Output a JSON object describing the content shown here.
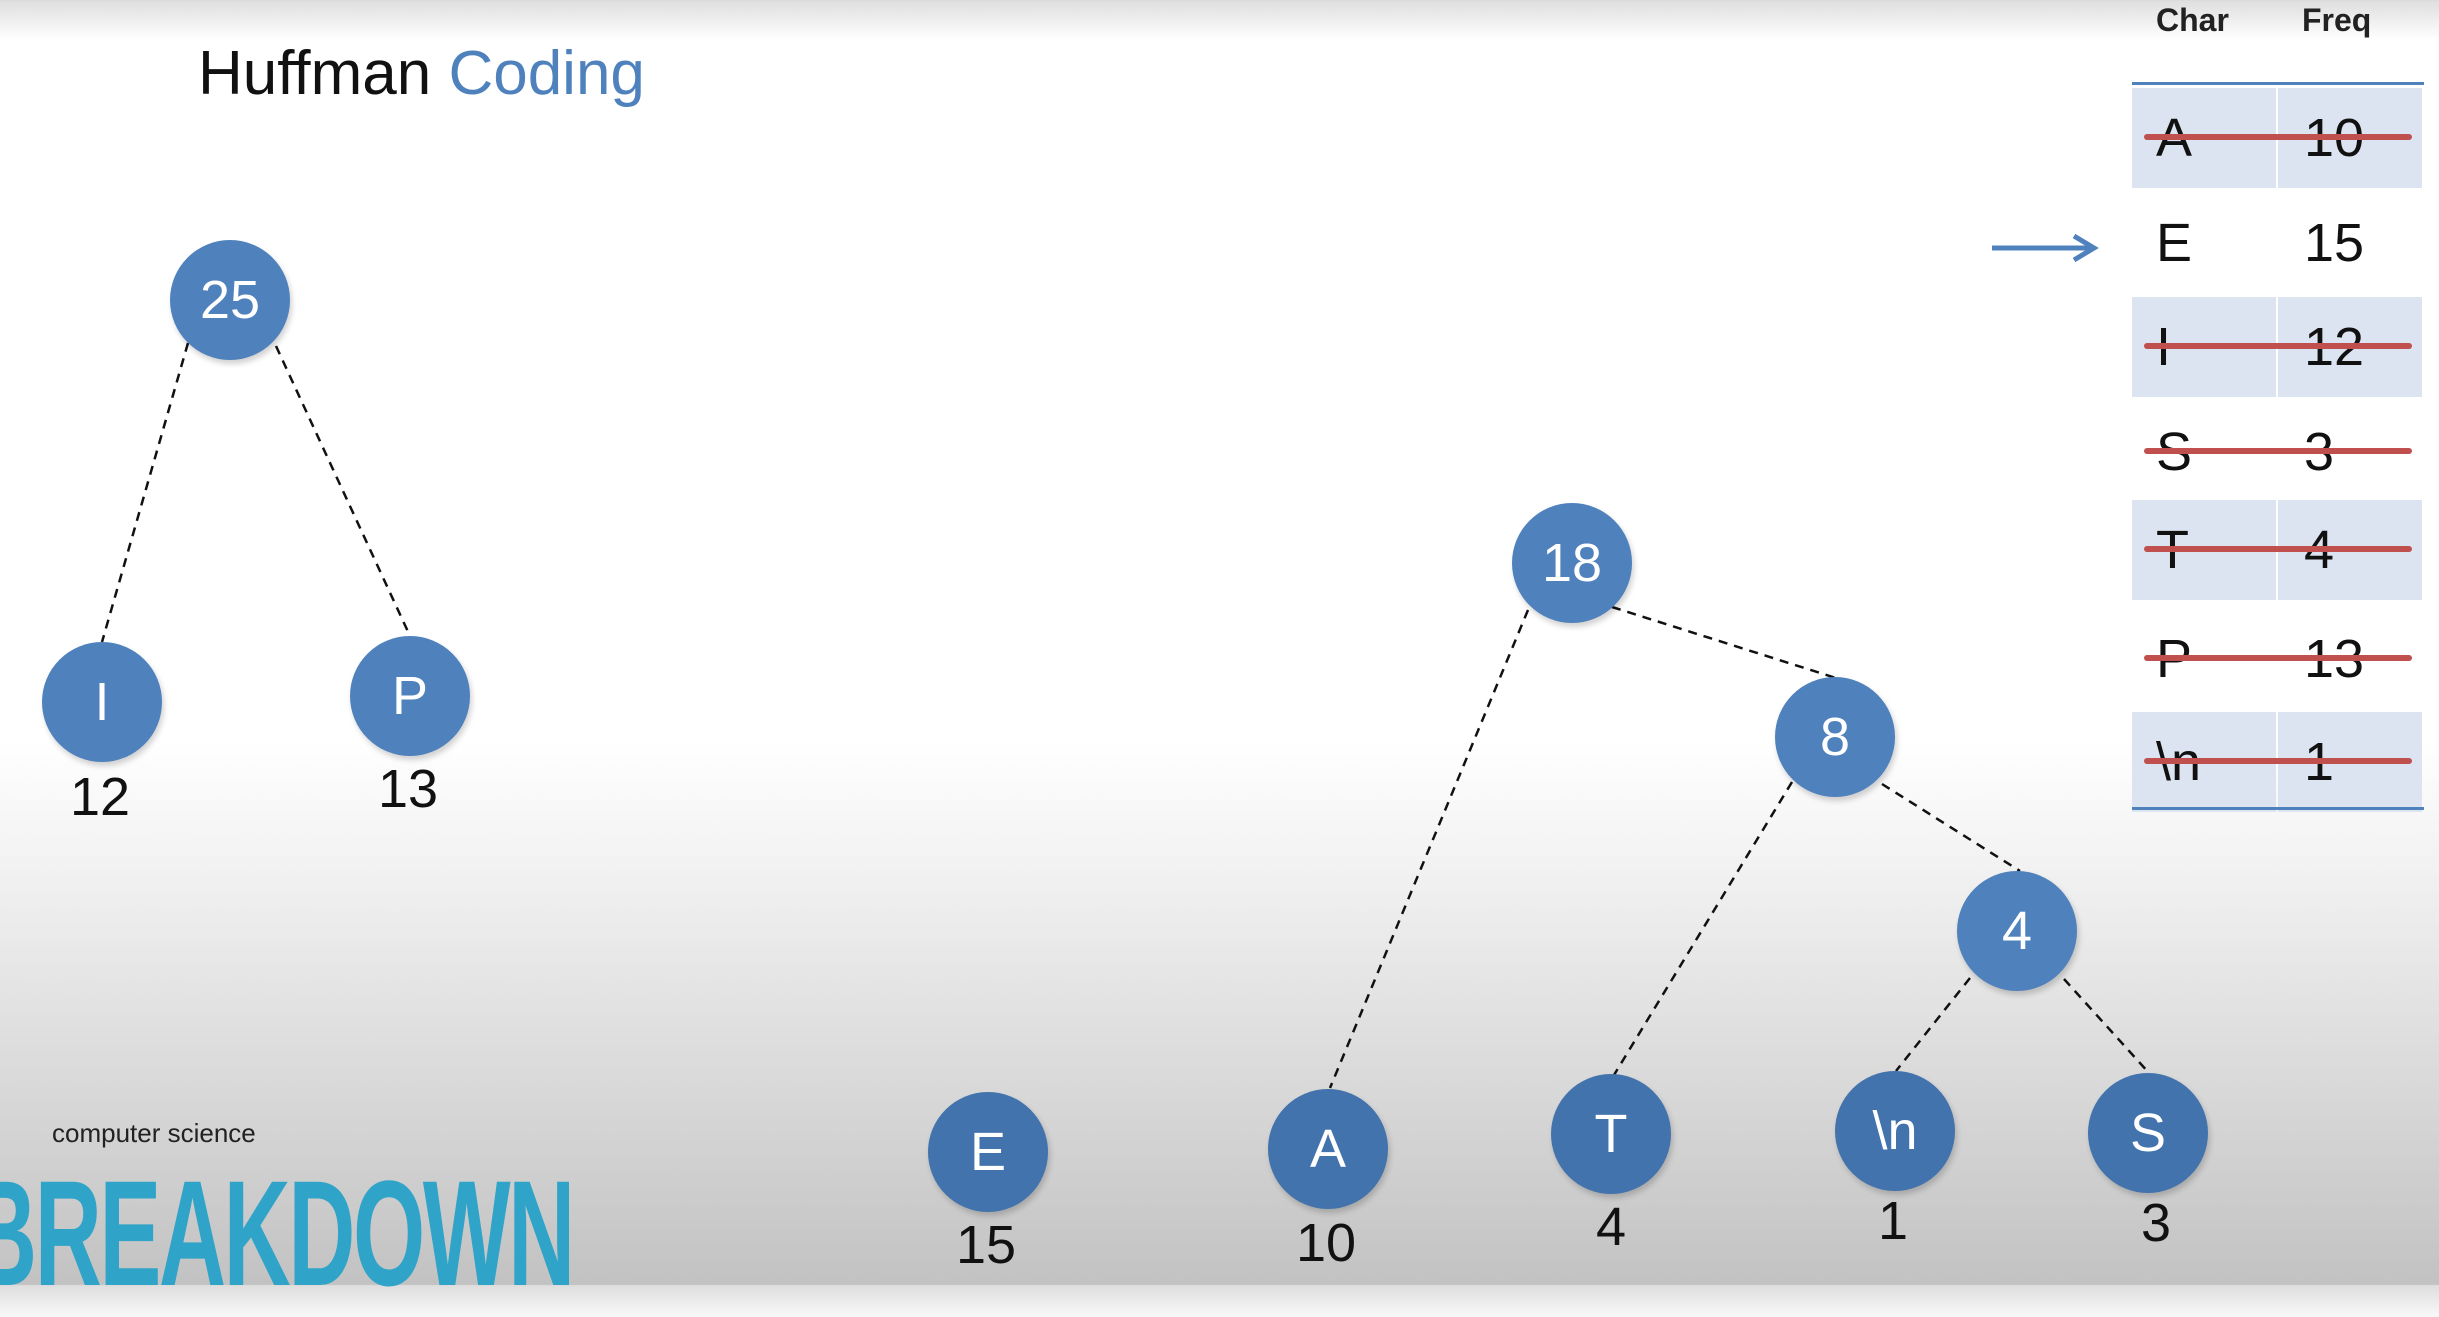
{
  "title": {
    "primary": "Huffman",
    "accent": "Coding"
  },
  "colors": {
    "node_fill": "#4f81bd",
    "accent_text": "#4f81bd",
    "strike": "#c0504d",
    "row_shade": "#dbe4f0",
    "logo": "#2fa4c8"
  },
  "table": {
    "headers": {
      "char": "Char",
      "freq": "Freq"
    },
    "rows": [
      {
        "char": "A",
        "freq": "10",
        "crossed": true
      },
      {
        "char": "E",
        "freq": "15",
        "crossed": false,
        "pointer": true
      },
      {
        "char": "I",
        "freq": "12",
        "crossed": true
      },
      {
        "char": "S",
        "freq": "3",
        "crossed": true
      },
      {
        "char": "T",
        "freq": "4",
        "crossed": true
      },
      {
        "char": "P",
        "freq": "13",
        "crossed": true
      },
      {
        "char": "\\n",
        "freq": "1",
        "crossed": true
      }
    ]
  },
  "trees": {
    "left": {
      "root": "25",
      "left": {
        "node": "I",
        "freq": "12"
      },
      "right": {
        "node": "P",
        "freq": "13"
      }
    },
    "right": {
      "root": "18",
      "n8": "8",
      "n4": "4",
      "leaves": {
        "A": {
          "node": "A",
          "freq": "10"
        },
        "T": {
          "node": "T",
          "freq": "4"
        },
        "NL": {
          "node": "\\n",
          "freq": "1"
        },
        "S": {
          "node": "S",
          "freq": "3"
        }
      }
    },
    "standalone": {
      "node": "E",
      "freq": "15"
    }
  },
  "logo": {
    "small": "computer science",
    "big": "BREAKDOWN"
  }
}
